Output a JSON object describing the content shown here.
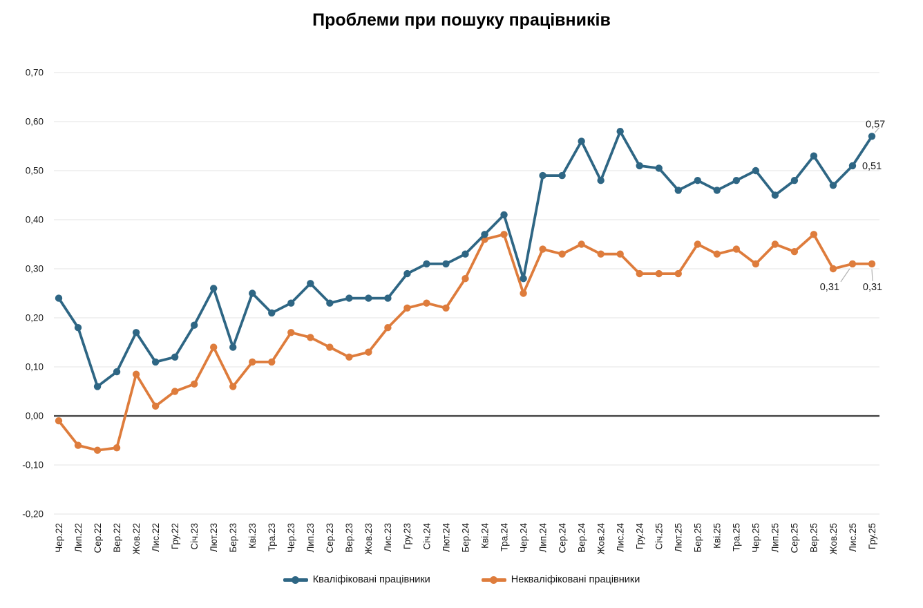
{
  "title": "Проблеми при пошуку працівників",
  "legend": {
    "skilled": "Кваліфіковані працівники",
    "unskilled": "Некваліфіковані працівники"
  },
  "colors": {
    "skilled": "#2e6684",
    "unskilled": "#de7c3c",
    "grid": "#e3e3e3",
    "zero_line": "#3d3d3d",
    "annotation_leader": "#b3b3b3"
  },
  "chart_data": {
    "type": "line",
    "title": "Проблеми при пошуку працівників",
    "xlabel": "",
    "ylabel": "",
    "ylim": [
      -0.2,
      0.7
    ],
    "grid": "horizontal",
    "zero_line": true,
    "legend_position": "bottom",
    "y_ticks": [
      {
        "value": 0.7,
        "label": "0,70"
      },
      {
        "value": 0.6,
        "label": "0,60"
      },
      {
        "value": 0.5,
        "label": "0,50"
      },
      {
        "value": 0.4,
        "label": "0,40"
      },
      {
        "value": 0.3,
        "label": "0,30"
      },
      {
        "value": 0.2,
        "label": "0,20"
      },
      {
        "value": 0.1,
        "label": "0,10"
      },
      {
        "value": 0.0,
        "label": "0,00"
      },
      {
        "value": -0.1,
        "label": "-0,10"
      },
      {
        "value": -0.2,
        "label": "-0,20"
      }
    ],
    "categories": [
      "Чер.22",
      "Лип.22",
      "Сер.22",
      "Вер.22",
      "Жов.22",
      "Лис.22",
      "Гру.22",
      "Січ.23",
      "Лют.23",
      "Бер.23",
      "Кві.23",
      "Тра.23",
      "Чер.23",
      "Лип.23",
      "Сер.23",
      "Вер.23",
      "Жов.23",
      "Лис.23",
      "Гру.23",
      "Січ.24",
      "Лют.24",
      "Бер.24",
      "Кві.24",
      "Тра.24",
      "Чер.24",
      "Лип.24",
      "Сер.24",
      "Вер.24",
      "Жов.24",
      "Лис.24",
      "Гру.24",
      "Січ.25",
      "Лют.25",
      "Бер.25",
      "Кві.25",
      "Тра.25",
      "Чер.25",
      "Лип.25",
      "Сер.25",
      "Вер.25",
      "Жов.25",
      "Лис.25",
      "Гру.25"
    ],
    "series": [
      {
        "id": "skilled",
        "name": "Кваліфіковані працівники",
        "color": "#2e6684",
        "values": [
          0.24,
          0.18,
          0.06,
          0.09,
          0.17,
          0.11,
          0.12,
          0.185,
          0.26,
          0.14,
          0.25,
          0.21,
          0.23,
          0.27,
          0.23,
          0.24,
          0.24,
          0.24,
          0.29,
          0.31,
          0.31,
          0.33,
          0.37,
          0.41,
          0.28,
          0.49,
          0.49,
          0.56,
          0.48,
          0.58,
          0.51,
          0.505,
          0.46,
          0.48,
          0.46,
          0.48,
          0.5,
          0.45,
          0.48,
          0.53,
          0.47,
          0.51,
          0.57
        ]
      },
      {
        "id": "unskilled",
        "name": "Некваліфіковані працівники",
        "color": "#de7c3c",
        "values": [
          -0.01,
          -0.06,
          -0.07,
          -0.065,
          0.085,
          0.02,
          0.05,
          0.065,
          0.14,
          0.06,
          0.11,
          0.11,
          0.17,
          0.16,
          0.14,
          0.12,
          0.13,
          0.18,
          0.22,
          0.23,
          0.22,
          0.28,
          0.36,
          0.37,
          0.25,
          0.34,
          0.33,
          0.35,
          0.33,
          0.33,
          0.29,
          0.29,
          0.29,
          0.35,
          0.33,
          0.34,
          0.31,
          0.35,
          0.335,
          0.37,
          0.3,
          0.31,
          0.31
        ]
      }
    ],
    "annotations": [
      {
        "series": "skilled",
        "index": 42,
        "text": "0,57",
        "placement": "upper-right"
      },
      {
        "series": "skilled",
        "index": 41,
        "text": "0,51",
        "placement": "right"
      },
      {
        "series": "unskilled",
        "index": 41,
        "text": "0,31",
        "placement": "below-left"
      },
      {
        "series": "unskilled",
        "index": 42,
        "text": "0,31",
        "placement": "below"
      }
    ]
  }
}
